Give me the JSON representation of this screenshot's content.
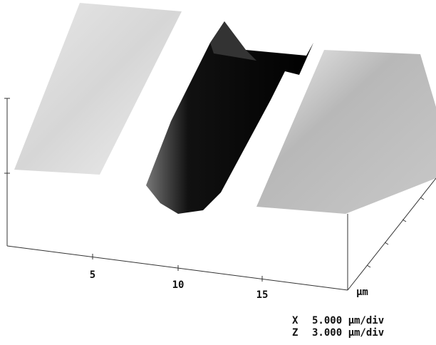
{
  "axis": {
    "x_ticks": [
      "5",
      "10",
      "15"
    ],
    "x_unit": "μm"
  },
  "scale": {
    "rows": [
      {
        "axis": "X",
        "value": "5.000 μm/div"
      },
      {
        "axis": "Z",
        "value": "3.000 μm/div"
      }
    ]
  }
}
